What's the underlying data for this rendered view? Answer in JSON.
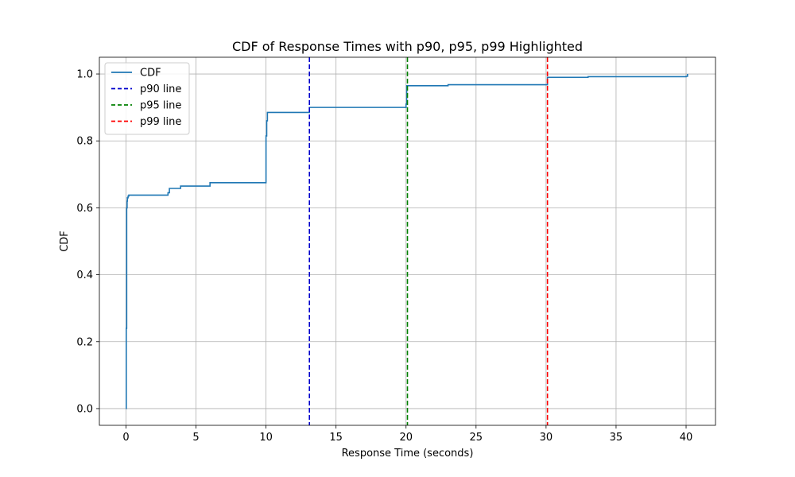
{
  "chart_data": {
    "type": "line",
    "title": "CDF of Response Times with p90, p95, p99 Highlighted",
    "xlabel": "Response Time (seconds)",
    "ylabel": "CDF",
    "xlim": [
      -1.9,
      42.1
    ],
    "ylim": [
      -0.05,
      1.05
    ],
    "xticks": [
      0,
      5,
      10,
      15,
      20,
      25,
      30,
      35,
      40
    ],
    "yticks": [
      0.0,
      0.2,
      0.4,
      0.6,
      0.8,
      1.0
    ],
    "xtick_labels": [
      "0",
      "5",
      "10",
      "15",
      "20",
      "25",
      "30",
      "35",
      "40"
    ],
    "ytick_labels": [
      "0.0",
      "0.2",
      "0.4",
      "0.6",
      "0.8",
      "1.0"
    ],
    "grid": true,
    "legend_position": "top-left",
    "series": [
      {
        "name": "CDF",
        "color": "#1f77b4",
        "step": true,
        "x": [
          0.0,
          0.02,
          0.05,
          0.08,
          0.1,
          0.15,
          0.2,
          3.0,
          3.1,
          3.9,
          6.0,
          10.0,
          10.05,
          10.1,
          13.1,
          20.0,
          20.05,
          23.0,
          30.1,
          33.0,
          40.0,
          40.1
        ],
        "y": [
          0.0,
          0.24,
          0.6,
          0.62,
          0.63,
          0.635,
          0.638,
          0.645,
          0.658,
          0.665,
          0.675,
          0.815,
          0.86,
          0.885,
          0.9,
          0.91,
          0.965,
          0.968,
          0.99,
          0.992,
          0.993,
          1.0
        ]
      }
    ],
    "vlines": [
      {
        "name": "p90 line",
        "x": 13.1,
        "color": "#0000cc"
      },
      {
        "name": "p95 line",
        "x": 20.1,
        "color": "#008000"
      },
      {
        "name": "p99 line",
        "x": 30.1,
        "color": "#ff0000"
      }
    ]
  }
}
